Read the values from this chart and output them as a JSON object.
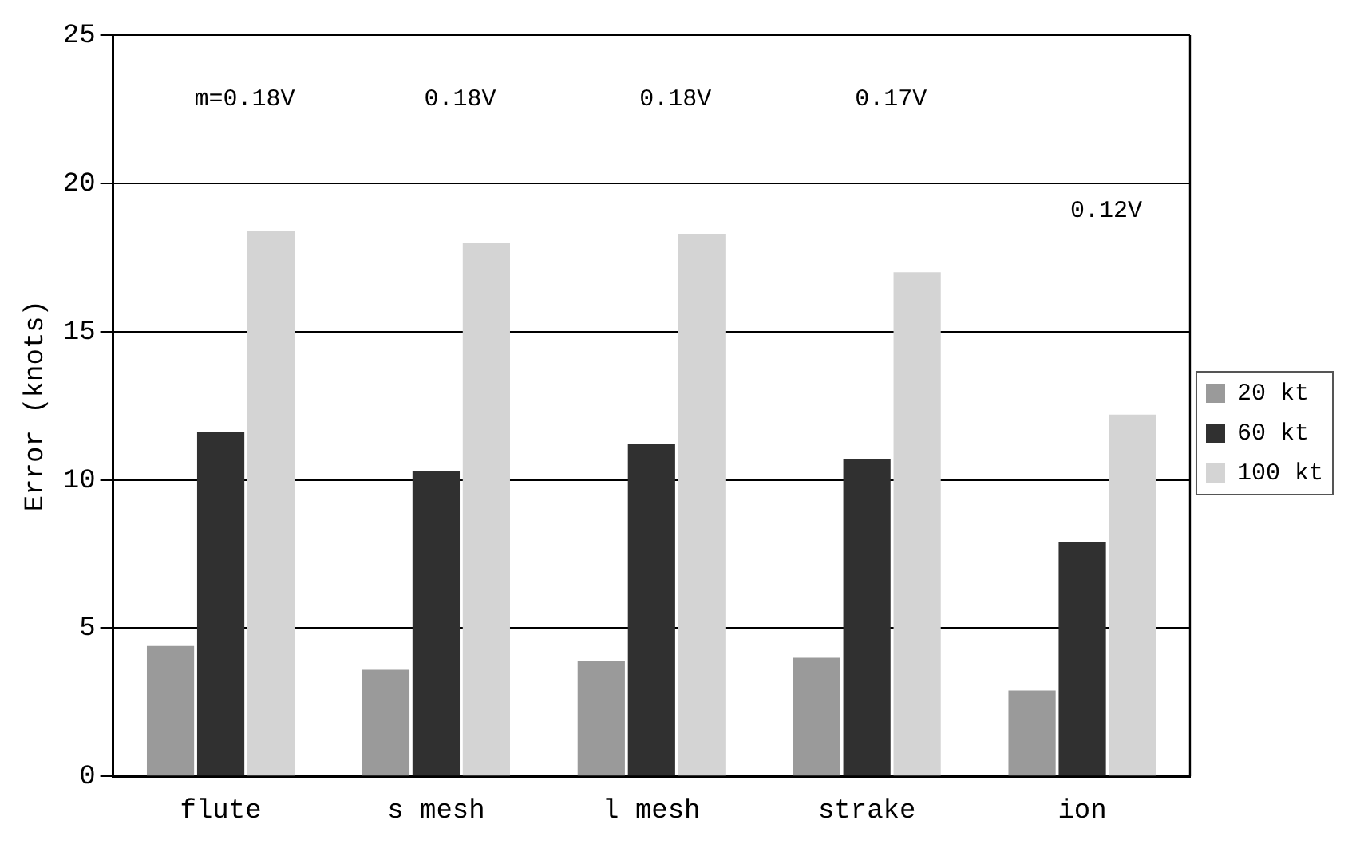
{
  "chart_data": {
    "type": "bar",
    "ylabel": "Error (knots)",
    "categories": [
      "flute",
      "s mesh",
      "l mesh",
      "strake",
      "ion"
    ],
    "series": [
      {
        "name": "20 kt",
        "color": "#9a9a9a",
        "values": [
          4.4,
          3.6,
          3.9,
          4.0,
          2.9
        ]
      },
      {
        "name": "60 kt",
        "color": "#303030",
        "values": [
          11.6,
          10.3,
          11.2,
          10.7,
          7.9
        ]
      },
      {
        "name": "100 kt",
        "color": "#d4d4d4",
        "values": [
          18.4,
          18.0,
          18.3,
          17.0,
          12.2
        ]
      }
    ],
    "ylim": [
      0,
      25
    ],
    "yticks": [
      0,
      5,
      10,
      15,
      20,
      25
    ],
    "grid": "y",
    "legend": "right",
    "annotations": [
      "m=0.18V",
      "0.18V",
      "0.18V",
      "0.17V",
      "0.12V"
    ]
  }
}
